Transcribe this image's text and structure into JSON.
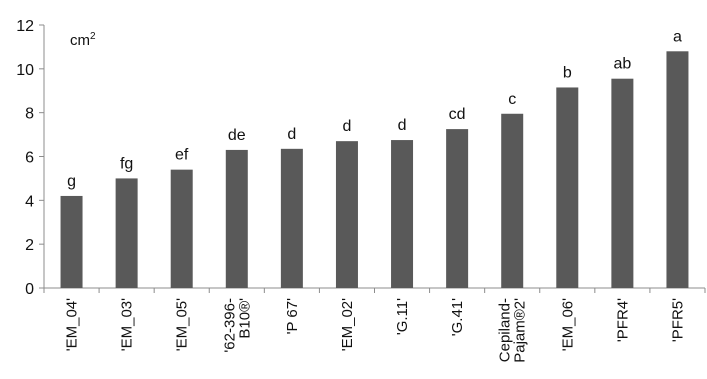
{
  "chart_data": {
    "type": "bar",
    "unit_label": "cm²",
    "categories": [
      "'EM_04'",
      "'EM_03'",
      "'EM_05'",
      "'62-396-B10®'",
      "'P 67'",
      "'EM_02'",
      "'G.11'",
      "'G.41'",
      "Cepiland-Pajam®2'",
      "'EM_06'",
      "'PFR4'",
      "'PFR5'"
    ],
    "category_lines": [
      [
        "'EM_04'"
      ],
      [
        "'EM_03'"
      ],
      [
        "'EM_05'"
      ],
      [
        "'62-396-",
        "B10®'"
      ],
      [
        "'P 67'"
      ],
      [
        "'EM_02'"
      ],
      [
        "'G.11'"
      ],
      [
        "'G.41'"
      ],
      [
        "Cepiland-",
        "Pajam®2'"
      ],
      [
        "'EM_06'"
      ],
      [
        "'PFR4'"
      ],
      [
        "'PFR5'"
      ]
    ],
    "values": [
      4.2,
      5.0,
      5.4,
      6.3,
      6.35,
      6.7,
      6.75,
      7.25,
      7.95,
      9.15,
      9.55,
      10.8
    ],
    "letters": [
      "g",
      "fg",
      "ef",
      "de",
      "d",
      "d",
      "d",
      "cd",
      "c",
      "b",
      "ab",
      "a"
    ],
    "ylim": [
      0,
      12
    ],
    "yticks": [
      0,
      2,
      4,
      6,
      8,
      10,
      12
    ],
    "bar_color": "#595959",
    "grid": false,
    "legend": "none"
  }
}
